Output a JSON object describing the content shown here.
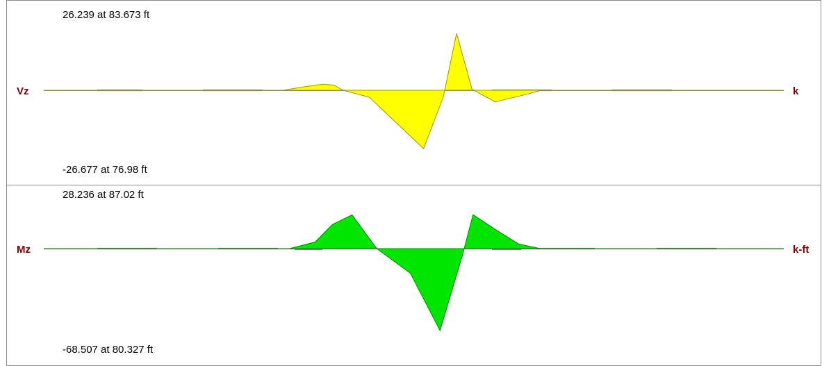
{
  "panels": [
    {
      "name": "shear",
      "label": "Vz",
      "unit": "k",
      "max_text": "26.239 at 83.673 ft",
      "min_text": "-26.677 at 76.98 ft",
      "fill": "#ffff00",
      "stroke": "#9a9a00"
    },
    {
      "name": "moment",
      "label": "Mz",
      "unit": "k-ft",
      "max_text": "28.236 at 87.02 ft",
      "min_text": "-68.507 at 80.327 ft",
      "fill": "#00e600",
      "stroke": "#008800"
    }
  ],
  "chart_data": [
    {
      "type": "area",
      "series": [
        {
          "name": "Vz",
          "x": [
            0,
            48.5,
            52.5,
            56.5,
            58.8,
            60.7,
            66.0,
            76.98,
            81.0,
            83.673,
            86.8,
            91.5,
            96.5,
            100.8,
            150
          ],
          "values": [
            0,
            0,
            1.5,
            2.8,
            2.4,
            0,
            -3.2,
            -26.677,
            -3.0,
            26.239,
            0.5,
            -5.3,
            -2.6,
            0,
            0
          ]
        }
      ],
      "xlim": [
        0,
        150
      ],
      "ylim": [
        -26.677,
        26.239
      ]
    },
    {
      "type": "area",
      "series": [
        {
          "name": "Mz",
          "x": [
            0,
            49.8,
            55.0,
            58.5,
            62.5,
            67.5,
            74.3,
            80.327,
            84.9,
            87.02,
            91.5,
            96.2,
            100.6,
            150
          ],
          "values": [
            0,
            0,
            5.5,
            20.0,
            28.0,
            0,
            -20.5,
            -68.507,
            -5.0,
            28.236,
            16.0,
            4.0,
            0,
            0
          ]
        }
      ],
      "xlim": [
        0,
        150
      ],
      "ylim": [
        -68.507,
        28.236
      ]
    }
  ]
}
